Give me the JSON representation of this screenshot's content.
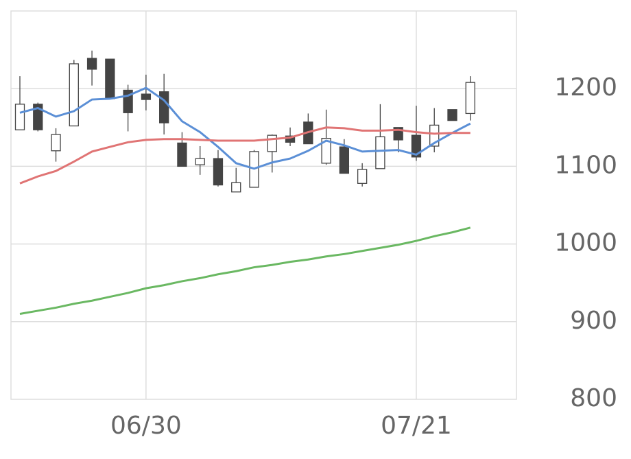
{
  "chart_data": {
    "type": "candlestick",
    "categories": [
      null,
      null,
      null,
      null,
      null,
      null,
      null,
      "06/30",
      null,
      null,
      null,
      null,
      null,
      null,
      null,
      null,
      null,
      null,
      null,
      null,
      null,
      null,
      "07/21",
      null,
      null,
      null
    ],
    "open": [
      1147,
      1180,
      1120,
      1152,
      1239,
      1238,
      1198,
      1193,
      1196,
      1130,
      1102,
      1110,
      1067,
      1073,
      1119,
      1139,
      1157,
      1104,
      1125,
      1078,
      1097,
      1150,
      1140,
      1126,
      1173,
      1168
    ],
    "high": [
      1216,
      1182,
      1149,
      1237,
      1249,
      1238,
      1205,
      1218,
      1219,
      1144,
      1126,
      1121,
      1098,
      1121,
      1141,
      1150,
      1168,
      1173,
      1135,
      1104,
      1180,
      1150,
      1178,
      1175,
      1173,
      1216
    ],
    "low": [
      1147,
      1145,
      1106,
      1152,
      1204,
      1187,
      1145,
      1172,
      1141,
      1100,
      1089,
      1074,
      1067,
      1073,
      1092,
      1126,
      1129,
      1102,
      1091,
      1074,
      1097,
      1118,
      1107,
      1118,
      1159,
      1159
    ],
    "close": [
      1180,
      1147,
      1141,
      1232,
      1225,
      1187,
      1169,
      1186,
      1156,
      1100,
      1110,
      1076,
      1079,
      1119,
      1140,
      1131,
      1129,
      1136,
      1091,
      1096,
      1138,
      1134,
      1112,
      1153,
      1159,
      1208
    ],
    "up_color": "#ffffff",
    "down_color": "#444444",
    "edge_color": "#444444",
    "lines": [
      {
        "color": "#5b8fd6",
        "values": [
          1169,
          1175,
          1164,
          1171,
          1186,
          1187,
          1191,
          1201,
          1185,
          1158,
          1144,
          1125,
          1104,
          1097,
          1105,
          1110,
          1120,
          1133,
          1127,
          1119,
          1120,
          1121,
          1115,
          1130,
          1143,
          1155
        ]
      },
      {
        "color": "#e07474",
        "values": [
          1078,
          1087,
          1094,
          1106,
          1119,
          1125,
          1131,
          1134,
          1135,
          1135,
          1134,
          1133,
          1133,
          1133,
          1135,
          1137,
          1144,
          1150,
          1149,
          1146,
          1146,
          1147,
          1144,
          1142,
          1143,
          1143
        ]
      },
      {
        "color": "#6ab862",
        "values": [
          910,
          914,
          918,
          923,
          927,
          932,
          937,
          943,
          947,
          952,
          956,
          961,
          965,
          970,
          973,
          977,
          980,
          984,
          987,
          991,
          995,
          999,
          1004,
          1010,
          1015,
          1021
        ]
      }
    ],
    "ylim": [
      800,
      1300
    ],
    "yticks": [
      800,
      900,
      1000,
      1100,
      1200
    ],
    "grid": true
  }
}
